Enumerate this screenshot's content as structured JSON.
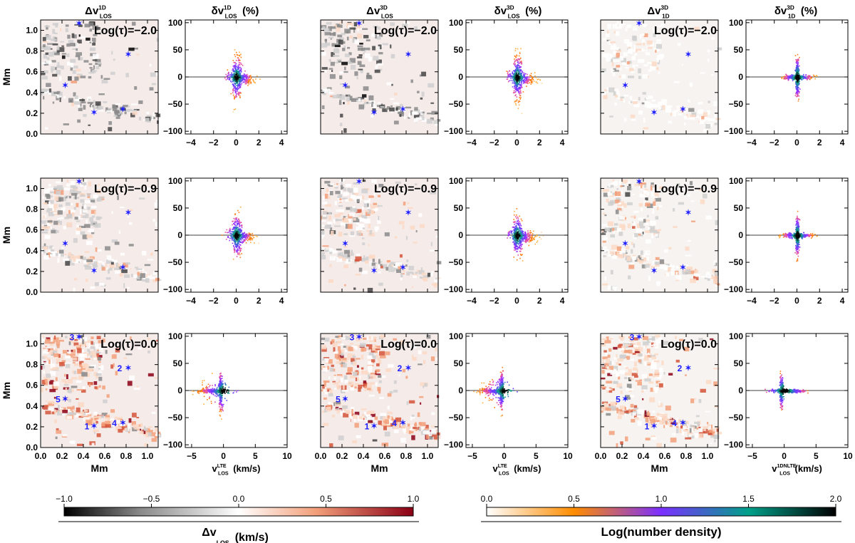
{
  "figure": {
    "column_headers": [
      {
        "main": "Δv",
        "sup": "1D",
        "sub": "LOS",
        "tail": ""
      },
      {
        "main": "δv",
        "sup": "1D",
        "sub": "LOS",
        "tail": "(%)"
      },
      {
        "main": "Δv",
        "sup": "3D",
        "sub": "LOS",
        "tail": ""
      },
      {
        "main": "δv",
        "sup": "3D",
        "sub": "LOS",
        "tail": "(%)"
      },
      {
        "main": "Δv",
        "sup": "3D",
        "sub": "1D",
        "tail": ""
      },
      {
        "main": "δv",
        "sup": "3D",
        "sub": "1D",
        "tail": "(%)"
      }
    ],
    "row_labels": [
      "Log(τ)=−2.0",
      "Log(τ)=−0.9",
      "Log(τ)=0.0"
    ],
    "map_ylabel": "Mm",
    "map_xlabel": "Mm",
    "map_yticks": [
      "0.0",
      "0.2",
      "0.4",
      "0.6",
      "0.8",
      "1.0"
    ],
    "map_xticks": [
      "0.0",
      "0.2",
      "0.4",
      "0.6",
      "0.8",
      "1.0"
    ],
    "scatter_yticks": [
      "100",
      "50",
      "0",
      "−50",
      "−100"
    ],
    "scatter_xticks_top": [
      "−4",
      "−2",
      "0",
      "2",
      "4"
    ],
    "scatter_xticks_bottom": [
      "−5",
      "0",
      "5",
      "10"
    ],
    "scatter_xlabels": [
      {
        "main": "v",
        "sup": "LTE",
        "sub": "LOS",
        "tail": "(km/s)"
      },
      {
        "main": "v",
        "sup": "LTE",
        "sub": "LOS",
        "tail": "(km/s)"
      },
      {
        "main": "v",
        "sup": "1DNLTE",
        "sub": "LOS",
        "tail": "(km/s)"
      }
    ],
    "markers": [
      {
        "id": "1",
        "x": 0.5,
        "y": 0.21
      },
      {
        "id": "2",
        "x": 0.82,
        "y": 0.77
      },
      {
        "id": "3",
        "x": 0.36,
        "y": 1.07
      },
      {
        "id": "4",
        "x": 0.77,
        "y": 0.24
      },
      {
        "id": "5",
        "x": 0.23,
        "y": 0.47
      }
    ],
    "colorbar_velocity": {
      "ticks": [
        "−1.0",
        "−0.5",
        "0.0",
        "0.5",
        "1.0"
      ],
      "label_main": "Δv",
      "label_sub": "LOS",
      "label_tail": "(km/s)",
      "colors": [
        "#000000",
        "#ffffff",
        "#8b0015"
      ]
    },
    "colorbar_density": {
      "ticks": [
        "0.0",
        "0.5",
        "1.0",
        "1.5",
        "2.0"
      ],
      "label": "Log(number density)",
      "colors": [
        "#ffffff",
        "#ff8c00",
        "#7b2fff",
        "#00a08a",
        "#000000"
      ]
    }
  },
  "chart_data": [
    {
      "type": "heatmap",
      "panels": [
        {
          "column": "Δv 1D LOS",
          "row": "Log(τ)=−2.0"
        },
        {
          "column": "Δv 3D LOS",
          "row": "Log(τ)=−2.0"
        },
        {
          "column": "Δv 3D 1D",
          "row": "Log(τ)=−2.0"
        },
        {
          "column": "Δv 1D LOS",
          "row": "Log(τ)=−0.9"
        },
        {
          "column": "Δv 3D LOS",
          "row": "Log(τ)=−0.9"
        },
        {
          "column": "Δv 3D 1D",
          "row": "Log(τ)=−0.9"
        },
        {
          "column": "Δv 1D LOS",
          "row": "Log(τ)=0.0"
        },
        {
          "column": "Δv 3D LOS",
          "row": "Log(τ)=0.0"
        },
        {
          "column": "Δv 3D 1D",
          "row": "Log(τ)=0.0"
        }
      ],
      "xlabel": "Mm",
      "ylabel": "Mm",
      "xlim": [
        0.0,
        1.1
      ],
      "ylim": [
        0.0,
        1.1
      ],
      "colorscale_range": [
        -1.0,
        1.0
      ]
    },
    {
      "type": "scatter",
      "panels": [
        {
          "column": "δv 1D LOS (%)",
          "row": "Log(τ)=−2.0",
          "xlim": [
            -4.5,
            4.5
          ]
        },
        {
          "column": "δv 3D LOS (%)",
          "row": "Log(τ)=−2.0",
          "xlim": [
            -4.5,
            4.5
          ]
        },
        {
          "column": "δv 3D 1D (%)",
          "row": "Log(τ)=−2.0",
          "xlim": [
            -4.5,
            4.5
          ]
        },
        {
          "column": "δv 1D LOS (%)",
          "row": "Log(τ)=−0.9",
          "xlim": [
            -4.5,
            4.5
          ]
        },
        {
          "column": "δv 3D LOS (%)",
          "row": "Log(τ)=−0.9",
          "xlim": [
            -4.5,
            4.5
          ]
        },
        {
          "column": "δv 3D 1D (%)",
          "row": "Log(τ)=−0.9",
          "xlim": [
            -4.5,
            4.5
          ]
        },
        {
          "column": "δv 1D LOS (%)",
          "row": "Log(τ)=0.0",
          "xlim": [
            -6,
            10
          ]
        },
        {
          "column": "δv 3D LOS (%)",
          "row": "Log(τ)=0.0",
          "xlim": [
            -6,
            10
          ]
        },
        {
          "column": "δv 3D 1D (%)",
          "row": "Log(τ)=0.0",
          "xlim": [
            -6,
            10
          ]
        }
      ],
      "ylim": [
        -105,
        105
      ],
      "density_colorscale_range": [
        0.0,
        2.0
      ]
    }
  ]
}
